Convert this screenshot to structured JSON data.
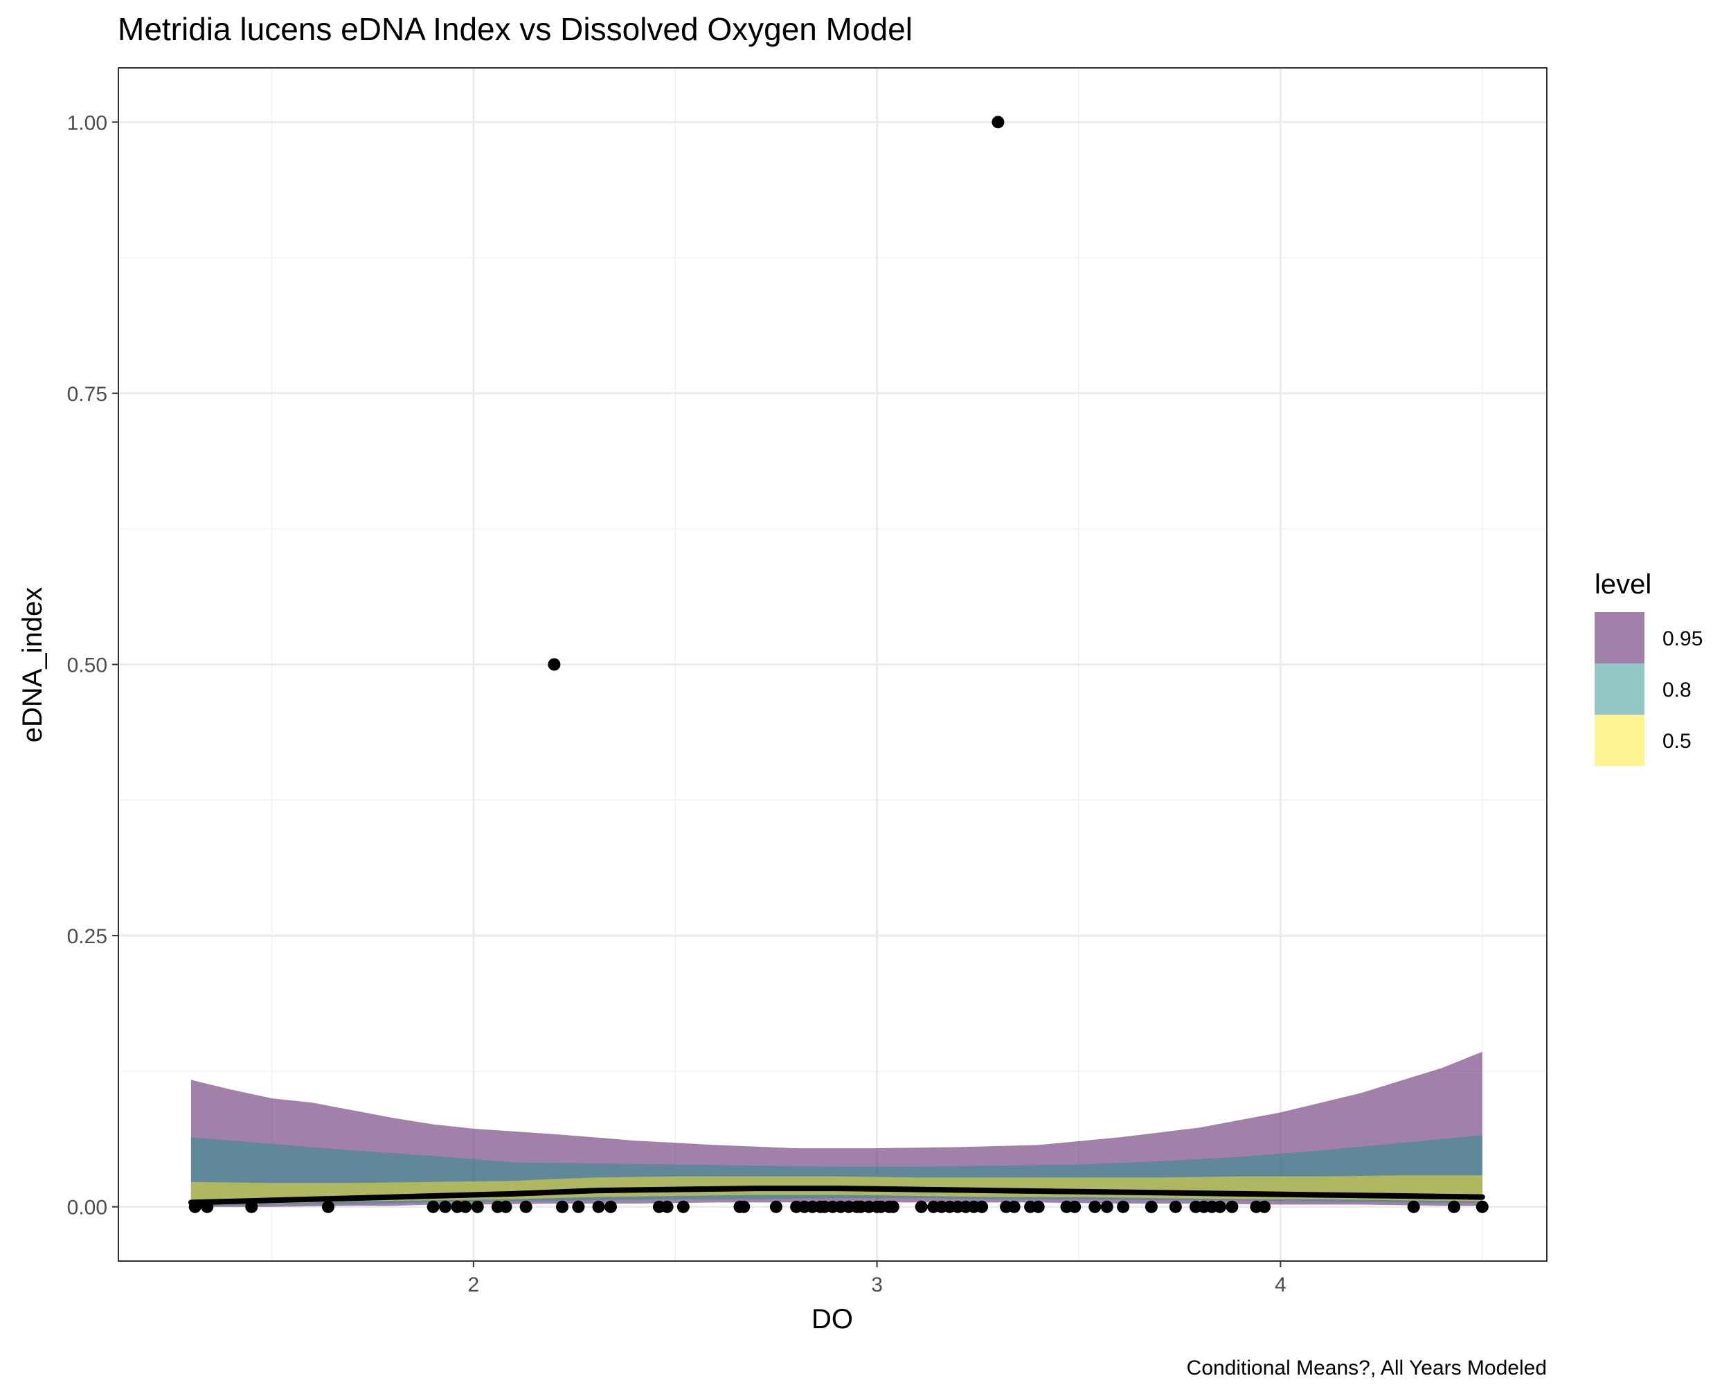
{
  "chart_data": {
    "type": "line",
    "title": "Metridia lucens eDNA Index vs Dissolved Oxygen Model",
    "xlabel": "DO",
    "ylabel": "eDNA_index",
    "caption": "Conditional Means?, All Years Modeled",
    "xlim": [
      1.12,
      4.66
    ],
    "ylim": [
      -0.05,
      1.05
    ],
    "x_ticks": [
      2,
      3,
      4
    ],
    "x_tick_labels": [
      "2",
      "3",
      "4"
    ],
    "y_ticks": [
      0,
      0.25,
      0.5,
      0.75,
      1.0
    ],
    "y_tick_labels": [
      "0.00",
      "0.25",
      "0.50",
      "0.75",
      "1.00"
    ],
    "grid": true,
    "legend": {
      "title": "level",
      "position": "right",
      "entries": [
        {
          "label": "0.95",
          "color": "#440154",
          "alpha": 0.5
        },
        {
          "label": "0.8",
          "color": "#21908C",
          "alpha": 0.5
        },
        {
          "label": "0.5",
          "color": "#FDE725",
          "alpha": 0.5
        }
      ]
    },
    "fit_line": {
      "color": "#000000",
      "x": [
        1.3,
        1.5,
        1.7,
        1.9,
        2.1,
        2.3,
        2.5,
        2.7,
        2.9,
        3.1,
        3.3,
        3.5,
        3.7,
        3.9,
        4.1,
        4.3,
        4.5
      ],
      "y": [
        0.004,
        0.006,
        0.008,
        0.01,
        0.012,
        0.015,
        0.016,
        0.017,
        0.017,
        0.016,
        0.015,
        0.014,
        0.013,
        0.012,
        0.011,
        0.01,
        0.009
      ]
    },
    "ribbons": [
      {
        "level": "0.95",
        "x": [
          1.3,
          1.4,
          1.5,
          1.6,
          1.7,
          1.8,
          1.9,
          2.0,
          2.2,
          2.4,
          2.6,
          2.8,
          3.0,
          3.2,
          3.4,
          3.6,
          3.8,
          4.0,
          4.2,
          4.4,
          4.5
        ],
        "lower": [
          0.0,
          0.0,
          0.0,
          0.0005,
          0.001,
          0.001,
          0.002,
          0.002,
          0.003,
          0.003,
          0.004,
          0.004,
          0.004,
          0.004,
          0.004,
          0.003,
          0.003,
          0.002,
          0.002,
          0.001,
          0.001
        ],
        "upper": [
          0.117,
          0.108,
          0.1,
          0.096,
          0.089,
          0.082,
          0.076,
          0.072,
          0.067,
          0.061,
          0.057,
          0.054,
          0.054,
          0.055,
          0.057,
          0.064,
          0.073,
          0.087,
          0.105,
          0.128,
          0.143
        ]
      },
      {
        "level": "0.8",
        "x": [
          1.3,
          1.5,
          1.7,
          1.9,
          2.1,
          2.3,
          2.5,
          2.7,
          2.9,
          3.1,
          3.3,
          3.5,
          3.7,
          3.9,
          4.1,
          4.3,
          4.5
        ],
        "lower": [
          0.001,
          0.002,
          0.003,
          0.004,
          0.005,
          0.006,
          0.007,
          0.007,
          0.008,
          0.008,
          0.007,
          0.007,
          0.006,
          0.006,
          0.005,
          0.004,
          0.004
        ],
        "upper": [
          0.064,
          0.058,
          0.052,
          0.047,
          0.041,
          0.04,
          0.039,
          0.038,
          0.037,
          0.037,
          0.038,
          0.039,
          0.042,
          0.046,
          0.052,
          0.059,
          0.066
        ]
      },
      {
        "level": "0.5",
        "x": [
          1.3,
          1.5,
          1.7,
          1.9,
          2.1,
          2.3,
          2.5,
          2.7,
          2.9,
          3.1,
          3.3,
          3.5,
          3.7,
          3.9,
          4.1,
          4.3,
          4.5
        ],
        "lower": [
          0.002,
          0.003,
          0.005,
          0.006,
          0.007,
          0.009,
          0.01,
          0.011,
          0.011,
          0.01,
          0.009,
          0.009,
          0.008,
          0.007,
          0.007,
          0.006,
          0.005
        ],
        "upper": [
          0.023,
          0.022,
          0.022,
          0.023,
          0.024,
          0.027,
          0.028,
          0.028,
          0.028,
          0.027,
          0.027,
          0.027,
          0.027,
          0.028,
          0.028,
          0.029,
          0.029
        ]
      }
    ],
    "points": {
      "color": "#000000",
      "x": [
        1.31,
        1.34,
        1.45,
        1.64,
        1.9,
        1.93,
        1.96,
        1.98,
        2.01,
        2.06,
        2.08,
        2.13,
        2.2,
        2.22,
        2.26,
        2.31,
        2.34,
        2.46,
        2.48,
        2.52,
        2.66,
        2.67,
        2.75,
        2.8,
        2.82,
        2.84,
        2.86,
        2.87,
        2.89,
        2.91,
        2.93,
        2.95,
        2.96,
        2.98,
        3.0,
        3.01,
        3.03,
        3.04,
        3.11,
        3.14,
        3.16,
        3.18,
        3.2,
        3.22,
        3.24,
        3.26,
        3.3,
        3.32,
        3.34,
        3.38,
        3.4,
        3.47,
        3.49,
        3.54,
        3.57,
        3.61,
        3.68,
        3.74,
        3.79,
        3.81,
        3.83,
        3.85,
        3.88,
        3.94,
        3.96,
        4.33,
        4.43,
        4.5
      ],
      "y": [
        0,
        0,
        0,
        0,
        0,
        0,
        0,
        0,
        0,
        0,
        0,
        0,
        0.5,
        0,
        0,
        0,
        0,
        0,
        0,
        0,
        0,
        0,
        0,
        0,
        0,
        0,
        0,
        0,
        0,
        0,
        0,
        0,
        0,
        0,
        0,
        0,
        0,
        0,
        0,
        0,
        0,
        0,
        0,
        0,
        0,
        0,
        1.0,
        0,
        0,
        0,
        0,
        0,
        0,
        0,
        0,
        0,
        0,
        0,
        0,
        0,
        0,
        0,
        0,
        0,
        0,
        0,
        0,
        0
      ]
    }
  }
}
